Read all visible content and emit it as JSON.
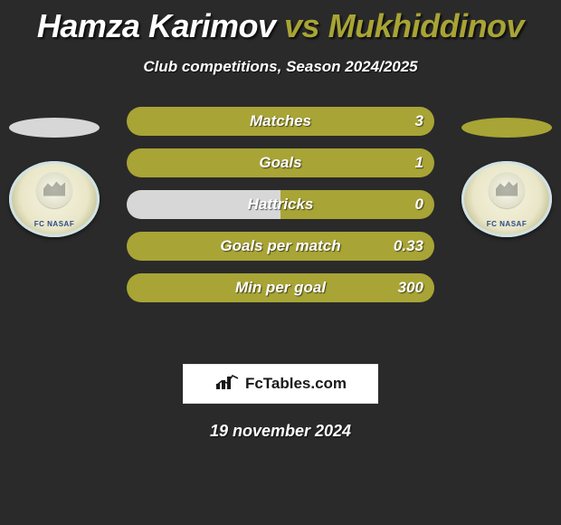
{
  "title": {
    "player1": "Hamza Karimov",
    "vs": "vs",
    "player2": "Mukhiddinov"
  },
  "subtitle": "Club competitions, Season 2024/2025",
  "colors": {
    "player1": "#d7d7d7",
    "player2": "#a8a435",
    "background": "#2a2a2a",
    "text": "#ffffff"
  },
  "badge": {
    "label_left": "FC NASAF",
    "label_right": "FC NASAF"
  },
  "stats": [
    {
      "label": "Matches",
      "left_val": "",
      "right_val": "3",
      "left_pct": 0,
      "right_pct": 100
    },
    {
      "label": "Goals",
      "left_val": "",
      "right_val": "1",
      "left_pct": 0,
      "right_pct": 100
    },
    {
      "label": "Hattricks",
      "left_val": "",
      "right_val": "0",
      "left_pct": 50,
      "right_pct": 50
    },
    {
      "label": "Goals per match",
      "left_val": "",
      "right_val": "0.33",
      "left_pct": 0,
      "right_pct": 100
    },
    {
      "label": "Min per goal",
      "left_val": "",
      "right_val": "300",
      "left_pct": 0,
      "right_pct": 100
    }
  ],
  "brand": "FcTables.com",
  "date": "19 november 2024"
}
